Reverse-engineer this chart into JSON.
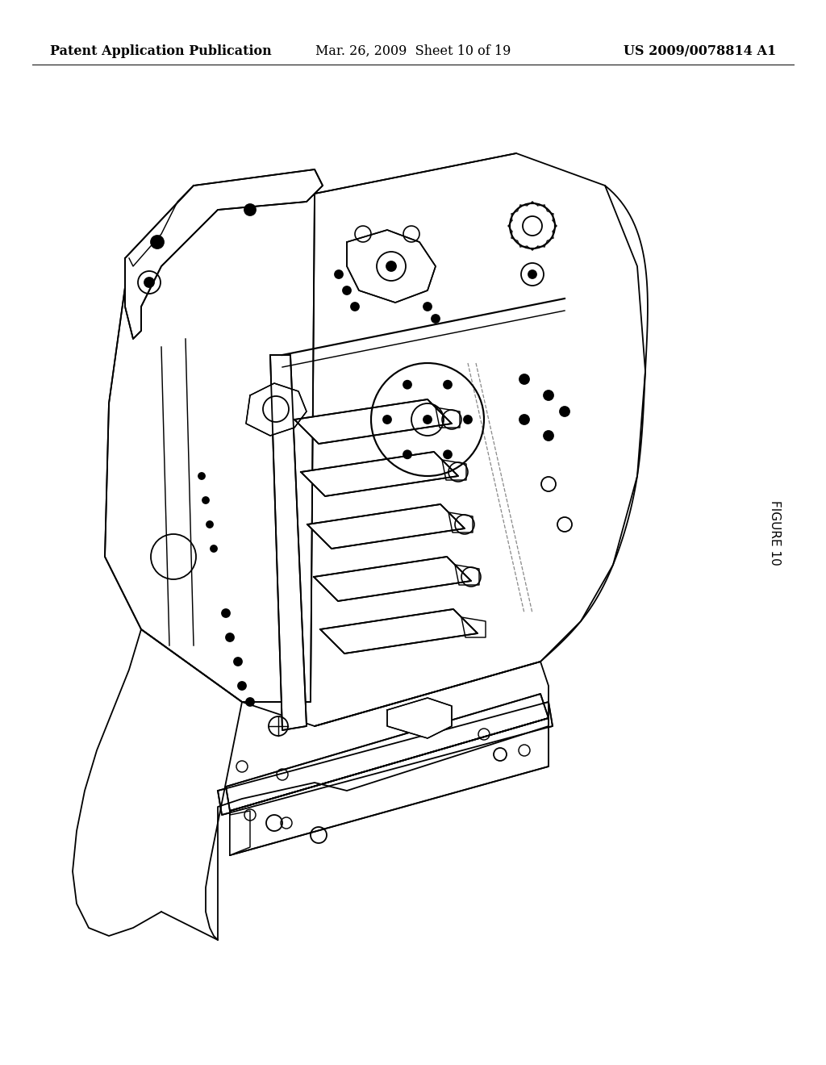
{
  "background_color": "#ffffff",
  "header_left": "Patent Application Publication",
  "header_center": "Mar. 26, 2009  Sheet 10 of 19",
  "header_right": "US 2009/0078814 A1",
  "header_fontsize": 11.5,
  "figure_label": "FIGURE 10",
  "figure_label_fontsize": 11,
  "line_color": "#000000",
  "line_width": 1.3
}
